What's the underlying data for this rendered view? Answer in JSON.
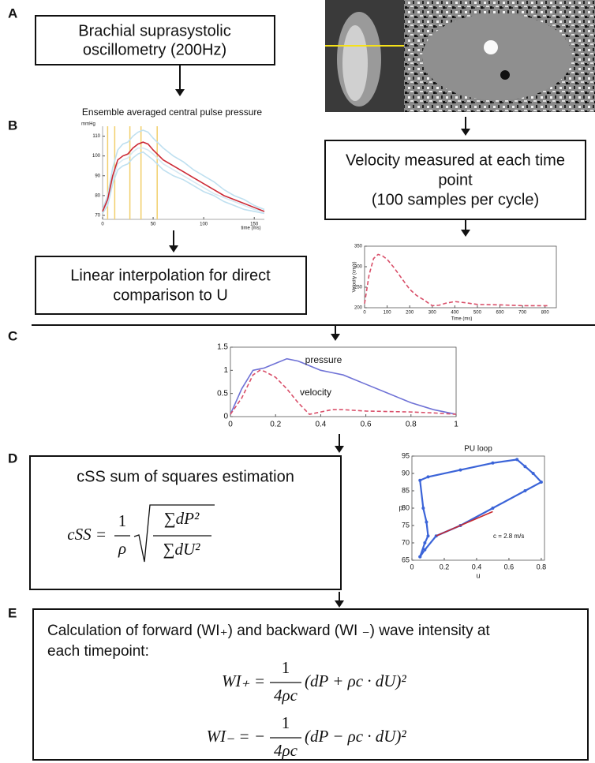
{
  "panel_labels": [
    "A",
    "B",
    "C",
    "D",
    "E"
  ],
  "boxes": {
    "oscillometry": {
      "lines": [
        "Brachial suprasystolic",
        "oscillometry (200Hz)"
      ]
    },
    "velocity": {
      "lines": [
        "Velocity measured at each time",
        "point",
        "(100 samples per cycle)"
      ]
    },
    "interpolation": {
      "lines": [
        "Linear interpolation for direct",
        "comparison to U"
      ]
    },
    "css": {
      "title": "cSS sum of squares estimation"
    },
    "wave_intensity": {
      "lines": [
        "Calculation of forward (WI₊) and backward (WI ₋) wave intensity at",
        "each timepoint:"
      ]
    }
  },
  "formulas": {
    "css": {
      "lhs": "cSS =",
      "num": "1",
      "den": "ρ",
      "root_num": "∑dP²",
      "root_den": "∑dU²"
    },
    "wi_plus": {
      "lhs": "WI₊ =",
      "num": "1",
      "den": "4ρc",
      "rhs": "(dP + ρc · dU)²"
    },
    "wi_minus": {
      "lhs": "WI₋ = −",
      "num": "1",
      "den": "4ρc",
      "rhs": "(dP − ρc · dU)²"
    }
  },
  "chart_data": [
    {
      "type": "line",
      "title": "Ensemble averaged central pulse  pressure",
      "y_label": "mmHg",
      "x_label": "time (ms)",
      "x": [
        0,
        5,
        10,
        15,
        20,
        25,
        30,
        35,
        40,
        45,
        50,
        60,
        70,
        80,
        90,
        100,
        110,
        120,
        130,
        140,
        150,
        160
      ],
      "series": [
        {
          "color": "#bfe0f0",
          "values": [
            73,
            80,
            94,
            103,
            106,
            107,
            110,
            112,
            113,
            112,
            109,
            104,
            100,
            97,
            93,
            90,
            87,
            83,
            80,
            78,
            75,
            73
          ]
        },
        {
          "color": "#bfe0f0",
          "values": [
            71,
            75,
            86,
            93,
            95,
            96,
            99,
            101,
            102,
            100,
            98,
            93,
            90,
            88,
            85,
            82,
            80,
            77,
            75,
            73,
            72,
            71
          ]
        },
        {
          "color": "#d6e9f3",
          "values": [
            72,
            77,
            88,
            96,
            98,
            99,
            102,
            104,
            104,
            103,
            101,
            96,
            93,
            90,
            87,
            84,
            81,
            79,
            77,
            75,
            73,
            72
          ]
        },
        {
          "color": "#cc2a36",
          "values": [
            72,
            78,
            90,
            98,
            100,
            101,
            104,
            106,
            107,
            106,
            103,
            98,
            95,
            92,
            89,
            86,
            83,
            80,
            78,
            76,
            74,
            72
          ]
        }
      ],
      "vlines": [
        5,
        12,
        27,
        38,
        54
      ],
      "vline_color": "#f2cf6b",
      "xlim": [
        0,
        160
      ],
      "ylim": [
        68,
        115
      ],
      "xticks": [
        0,
        50,
        100,
        150
      ],
      "yticks": [
        70,
        80,
        90,
        100,
        110
      ],
      "frame": false
    },
    {
      "type": "line",
      "y_label": "Velocity (cm/s)",
      "x_label": "Time (ms)",
      "x": [
        0,
        20,
        40,
        60,
        80,
        100,
        130,
        160,
        200,
        230,
        260,
        300,
        330,
        360,
        400,
        450,
        500,
        600,
        700,
        820
      ],
      "series": [
        {
          "color": "#d9506a",
          "dashed": true,
          "values": [
            210,
            280,
            320,
            330,
            326,
            318,
            298,
            275,
            245,
            230,
            220,
            205,
            206,
            211,
            215,
            212,
            208,
            207,
            205,
            205
          ]
        }
      ],
      "xlim": [
        0,
        850
      ],
      "ylim": [
        200,
        350
      ],
      "xticks": [
        0,
        100,
        200,
        300,
        400,
        500,
        600,
        700,
        800
      ],
      "yticks": [
        200,
        250,
        300,
        350
      ],
      "frame": true
    },
    {
      "type": "line",
      "x": [
        0,
        0.05,
        0.1,
        0.13,
        0.15,
        0.2,
        0.25,
        0.3,
        0.35,
        0.4,
        0.45,
        0.5,
        0.6,
        0.7,
        0.8,
        0.9,
        1.0
      ],
      "series": [
        {
          "name": "pressure",
          "color": "#6f72d6",
          "values": [
            0.05,
            0.6,
            1.0,
            1.03,
            1.05,
            1.15,
            1.25,
            1.2,
            1.1,
            1.0,
            0.95,
            0.9,
            0.7,
            0.5,
            0.3,
            0.15,
            0.05
          ]
        },
        {
          "name": "velocity",
          "color": "#d9506a",
          "dashed": true,
          "values": [
            0.05,
            0.4,
            0.9,
            1.0,
            0.98,
            0.85,
            0.6,
            0.3,
            0.05,
            0.1,
            0.15,
            0.15,
            0.12,
            0.11,
            0.1,
            0.08,
            0.05
          ]
        }
      ],
      "xlim": [
        0,
        1
      ],
      "ylim": [
        0,
        1.5
      ],
      "xticks": [
        0,
        0.2,
        0.4,
        0.6,
        0.8,
        1
      ],
      "yticks": [
        0,
        0.5,
        1,
        1.5
      ],
      "frame": true
    },
    {
      "type": "line",
      "title": "PU loop",
      "y_label": "p",
      "x_label": "u",
      "annotation": "c = 2.8 m/s",
      "series": [
        {
          "color": "#3b64d8",
          "markers": true,
          "x": [
            0.05,
            0.08,
            0.1,
            0.09,
            0.07,
            0.05,
            0.1,
            0.3,
            0.5,
            0.65,
            0.7,
            0.75,
            0.8,
            0.7,
            0.5,
            0.3,
            0.15,
            0.08,
            0.05
          ],
          "values": [
            66,
            70,
            72,
            76,
            80,
            88,
            89,
            91,
            93,
            94,
            92,
            90,
            87.5,
            85,
            80,
            75,
            72,
            68,
            66
          ]
        },
        {
          "color": "#c8282c",
          "x": [
            0.15,
            0.5
          ],
          "values": [
            72,
            79
          ]
        }
      ],
      "xlim": [
        0,
        0.82
      ],
      "ylim": [
        65,
        95
      ],
      "xticks": [
        0,
        0.2,
        0.4,
        0.6,
        0.8
      ],
      "yticks": [
        65,
        70,
        75,
        80,
        85,
        90,
        95
      ],
      "frame": true
    }
  ]
}
